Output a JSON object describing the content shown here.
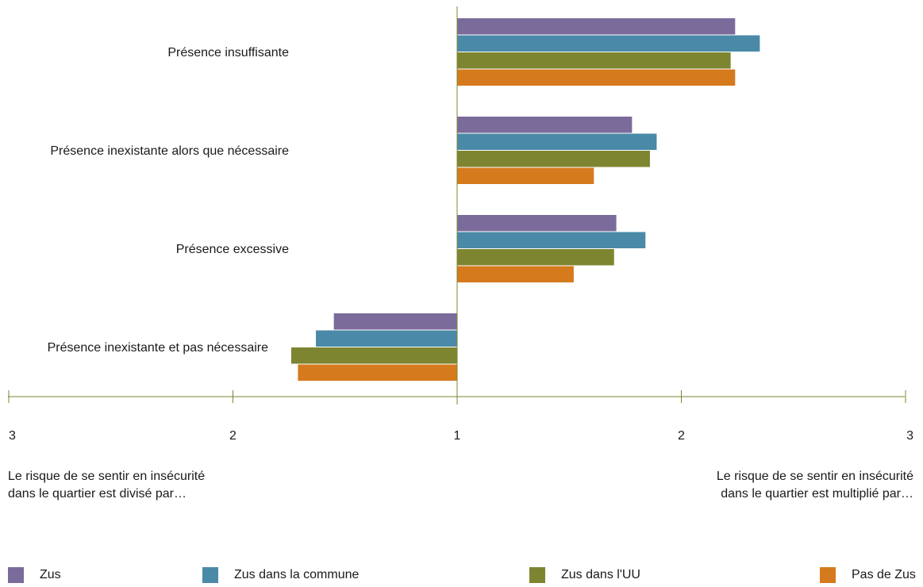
{
  "chart_data": {
    "type": "bar",
    "orientation": "horizontal",
    "categories": [
      "Présence insuffisante",
      "Présence inexistante alors que nécessaire",
      "Présence excessive",
      "Présence inexistante et pas nécessaire"
    ],
    "series": [
      {
        "name": "Zus",
        "color": "#7b6b9b",
        "values": [
          2.24,
          1.78,
          1.71,
          1.55
        ]
      },
      {
        "name": "Zus dans la commune",
        "color": "#4a8aa8",
        "values": [
          2.35,
          1.89,
          1.84,
          1.63
        ]
      },
      {
        "name": "Zus dans l'UU",
        "color": "#7e8530",
        "values": [
          2.22,
          1.86,
          1.7,
          1.74
        ]
      },
      {
        "name": "Pas de Zus",
        "color": "#d67a1e",
        "values": [
          2.24,
          1.61,
          1.52,
          1.71
        ]
      }
    ],
    "x_ticks": [
      "3",
      "2",
      "1",
      "2",
      "3"
    ],
    "notes": {
      "left": [
        "Le risque de se sentir en insécurité",
        "dans le quartier est divisé par…"
      ],
      "right": [
        "Le risque de se sentir en insécurité",
        "dans le quartier est multiplié par…"
      ]
    },
    "axis_color": "#7e8530",
    "grid": false,
    "legend_position": "bottom"
  }
}
